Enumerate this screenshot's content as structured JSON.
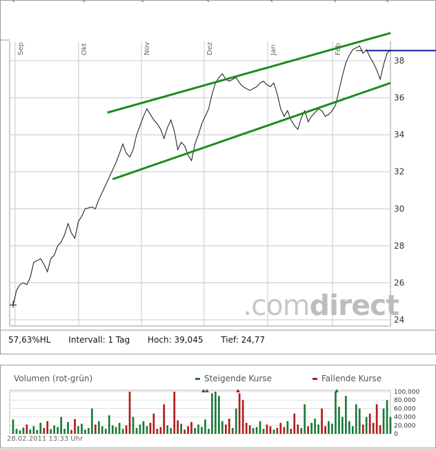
{
  "chart_data": [
    {
      "type": "line",
      "x_labels": [
        "Sep",
        "Okt",
        "Nov",
        "Dez",
        "Jan",
        "Feb"
      ],
      "y_ticks": [
        24,
        26,
        28,
        30,
        32,
        34,
        36,
        38
      ],
      "ylim": [
        23.5,
        39.2
      ],
      "grid": true,
      "series": [
        {
          "values": [
            24.8,
            25.6,
            25.9,
            26.0,
            25.9,
            26.3,
            27.1,
            27.2,
            27.3,
            27.0,
            26.6,
            27.3,
            27.5,
            28.0,
            28.2,
            28.6,
            29.2,
            28.7,
            28.4,
            29.3,
            29.6,
            30.0,
            30.05,
            30.1,
            30.0,
            30.5,
            30.9,
            31.3,
            31.7,
            32.1,
            32.5,
            33.0,
            33.5,
            33.0,
            32.8,
            33.2,
            34.0,
            34.5,
            35.0,
            35.4,
            35.1,
            34.8,
            34.6,
            34.3,
            33.8,
            34.4,
            34.8,
            34.2,
            33.2,
            33.6,
            33.4,
            32.9,
            32.6,
            33.5,
            34.0,
            34.6,
            35.0,
            35.4,
            36.2,
            36.8,
            37.1,
            37.3,
            37.0,
            36.9,
            37.0,
            37.1,
            36.8,
            36.6,
            36.5,
            36.4,
            36.5,
            36.6,
            36.8,
            36.9,
            36.7,
            36.6,
            36.8,
            36.2,
            35.4,
            35.0,
            35.3,
            34.8,
            34.5,
            34.3,
            34.9,
            35.3,
            34.7,
            35.0,
            35.2,
            35.4,
            35.3,
            35.0,
            35.1,
            35.3,
            35.6,
            36.4,
            37.2,
            37.9,
            38.3,
            38.6,
            38.7,
            38.8,
            38.4,
            38.6,
            38.2,
            37.9,
            37.5,
            37.0,
            37.8,
            38.4,
            38.6
          ]
        }
      ],
      "trend_lines": [
        {
          "color": "#1f8a1f",
          "points": [
            [
              27.5,
              35.2
            ],
            [
              110,
              39.5
            ]
          ]
        },
        {
          "color": "#1f8a1f",
          "points": [
            [
              29,
              31.6
            ],
            [
              110,
              36.8
            ]
          ]
        }
      ],
      "horizontal_line": {
        "y": 38.55,
        "color": "#1a1a9a"
      }
    },
    {
      "type": "bar",
      "title": "Volumen (rot-grün)",
      "legend": [
        "Steigende Kurse",
        "Fallende Kurse"
      ],
      "y_ticks": [
        "100.000",
        "80.000",
        "60.000",
        "40.000",
        "20.000",
        "0"
      ],
      "ylim": [
        0,
        100000
      ]
    }
  ],
  "stats": {
    "hl": "57,63%HL",
    "interval": "Intervall: 1 Tag",
    "high": "Hoch:  39,045",
    "low": "Tief:   24,77"
  },
  "volume": {
    "title": "Volumen (rot-grün)",
    "legend_up": "Steigende Kurse",
    "legend_down": "Fallende Kurse"
  },
  "watermark": {
    "dot": ".com",
    "bold": "direct"
  },
  "timestamp": "28.02.2011 13:33 Uhr",
  "colors": {
    "up": "#1a7a3a",
    "down": "#b01c1c",
    "trend": "#1f8a1f",
    "hline": "#1a1a9a"
  }
}
